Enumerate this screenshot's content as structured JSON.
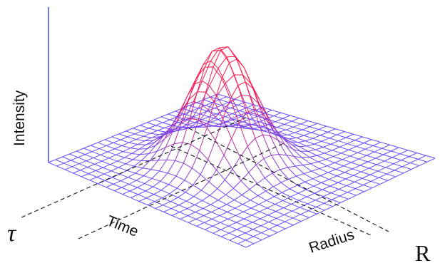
{
  "labels": {
    "intensity": "Intensity",
    "time": "Time",
    "radius": "Radius",
    "tau": "τ",
    "r": "R"
  },
  "colors": {
    "mesh_low": "#6a4cff",
    "mesh_high": "#ff1a4a",
    "axis": "#2a2ad0",
    "dashed": "#222222"
  },
  "surface": {
    "type": "gaussian-peak-mesh",
    "grid_lines_per_axis": 25,
    "peak": 1
  }
}
